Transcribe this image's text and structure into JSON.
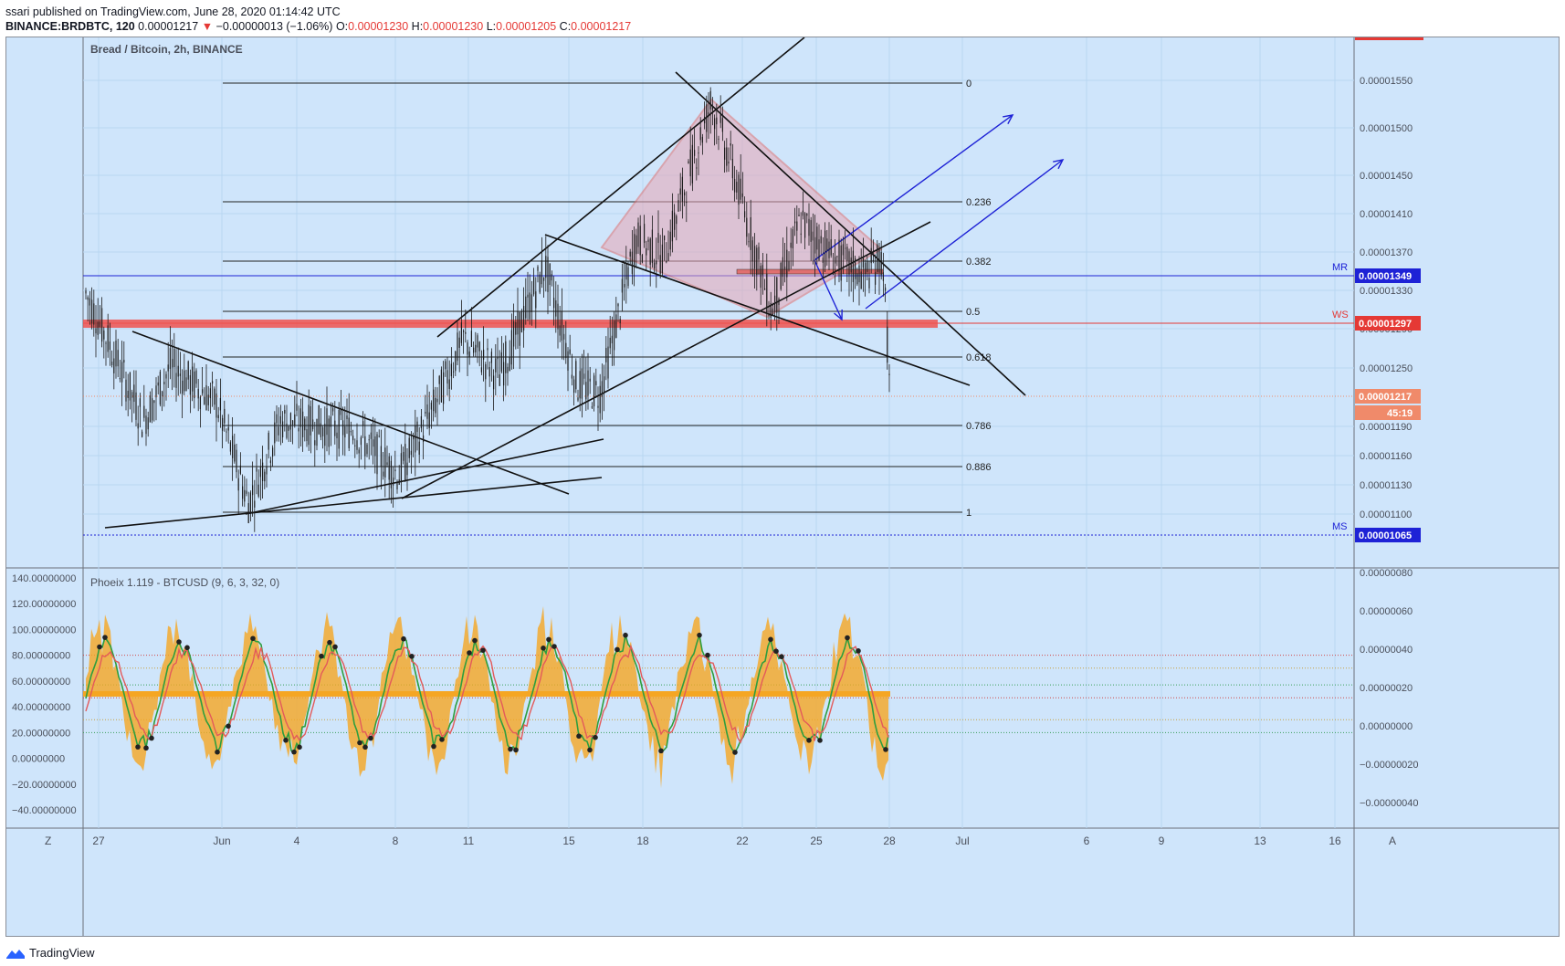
{
  "header": {
    "publisher": "ssari published on TradingView.com, June 28, 2020 01:14:42 UTC",
    "symbol": "BINANCE:BRDBTC, 120",
    "last": "0.00001217",
    "change_arrow": "▼",
    "change": "−0.00000013 (−1.06%)",
    "o_label": "O:",
    "o_value": "0.00001230",
    "h_label": "H:",
    "h_value": "0.00001230",
    "l_label": "L:",
    "l_value": "0.00001205",
    "c_label": "C:",
    "c_value": "0.00001217"
  },
  "footer": {
    "brand": "TradingView",
    "icon": "tradingview-logo-icon"
  },
  "colors": {
    "background": "#cfe5fb",
    "candle": "#1c1c1c",
    "red_band": "#ef5350",
    "pattern_fill": "#e8a7b6",
    "blue_arrow": "#1e22d6",
    "osc_fill": "#f5a623",
    "osc_green": "#2e9e3e",
    "osc_red": "#e35a5a"
  },
  "chart_data": [
    {
      "type": "candlestick",
      "title": "Bread / Bitcoin, 2h, BINANCE",
      "x_ticks": [
        "27",
        "Jun",
        "4",
        "8",
        "11",
        "15",
        "18",
        "22",
        "25",
        "28",
        "Jul",
        "6",
        "9",
        "13",
        "16"
      ],
      "y_ticks": [
        "0.00001550",
        "0.00001500",
        "0.00001450",
        "0.00001410",
        "0.00001370",
        "0.00001330",
        "0.00001290",
        "0.00001250",
        "0.00001190",
        "0.00001160",
        "0.00001130",
        "0.00001100"
      ],
      "ylim": [
        1.03e-05,
        1.61e-05
      ],
      "fib_levels": [
        {
          "label": "0",
          "value": 1.56e-05
        },
        {
          "label": "0.236",
          "value": 1.43e-05
        },
        {
          "label": "0.382",
          "value": 1.365e-05
        },
        {
          "label": "0.5",
          "value": 1.31e-05
        },
        {
          "label": "0.618",
          "value": 1.26e-05
        },
        {
          "label": "0.786",
          "value": 1.185e-05
        },
        {
          "label": "0.886",
          "value": 1.14e-05
        },
        {
          "label": "1",
          "value": 1.09e-05
        }
      ],
      "price_labels": [
        {
          "side": "MR",
          "value": "0.00001349",
          "color": "#1e22d6"
        },
        {
          "side": "WS",
          "value": "0.00001297",
          "color": "#e53935"
        },
        {
          "side": "",
          "value": "0.00001217",
          "color": "#f08a6a"
        },
        {
          "side": "",
          "value": "45:19",
          "color": "#f08a6a"
        },
        {
          "side": "MS",
          "value": "0.00001065",
          "color": "#1e22d6"
        }
      ],
      "last_price": 1.217e-05,
      "high_marker": 1.61e-05
    },
    {
      "type": "area",
      "title": "Phoeix 1.119 - BTCUSD (9, 6, 3, 32, 0)",
      "y_ticks_left": [
        "140.00000000",
        "120.00000000",
        "100.00000000",
        "80.00000000",
        "60.00000000",
        "40.00000000",
        "20.00000000",
        "0.00000000",
        "−20.00000000",
        "−40.00000000"
      ],
      "y_ticks_right": [
        "0.00000080",
        "0.00000060",
        "0.00000040",
        "0.00000020",
        "0.00000000",
        "−0.00000020",
        "−0.00000040"
      ],
      "ylim": [
        -40,
        140
      ],
      "reference_lines": [
        80,
        70,
        57,
        47,
        30,
        20
      ],
      "zero_band": 50
    }
  ],
  "corner_labels": {
    "left": "Z",
    "right": "A"
  }
}
